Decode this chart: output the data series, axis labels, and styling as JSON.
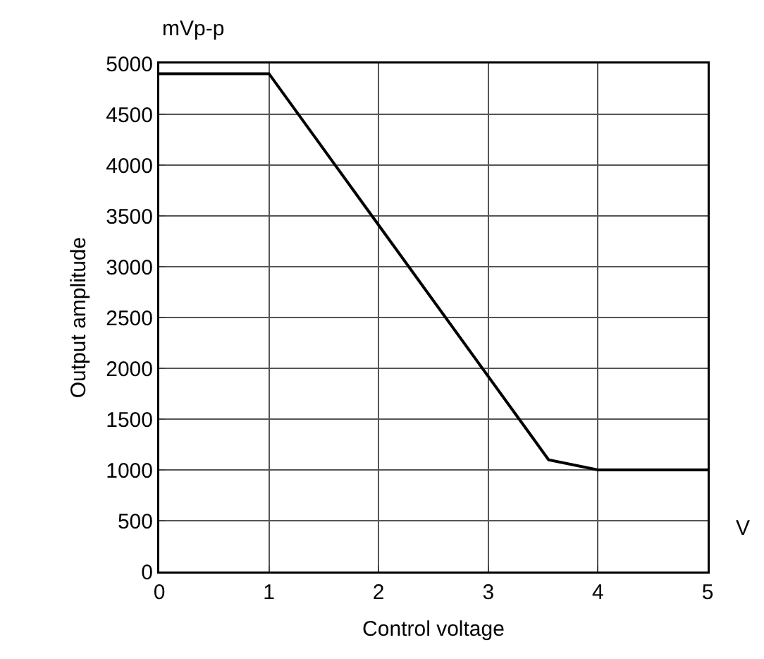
{
  "chart_data": {
    "type": "line",
    "xlabel": "Control voltage",
    "ylabel": "Output amplitude",
    "annotations": [
      "mVp-p",
      "V"
    ],
    "x": [
      0,
      1,
      3.55,
      4,
      5
    ],
    "series": [
      {
        "color": "#000000",
        "values": [
          4900,
          4900,
          1100,
          1000,
          1000
        ]
      }
    ],
    "xlim": [
      0,
      5
    ],
    "xticks": [
      0,
      1,
      2,
      3,
      4,
      5
    ],
    "ylim": [
      0,
      5000
    ],
    "yticks": [
      0,
      500,
      1000,
      1500,
      2000,
      2500,
      3000,
      3500,
      4000,
      4500,
      5000
    ],
    "grid": true,
    "marker": "none",
    "line_style": "solid"
  }
}
